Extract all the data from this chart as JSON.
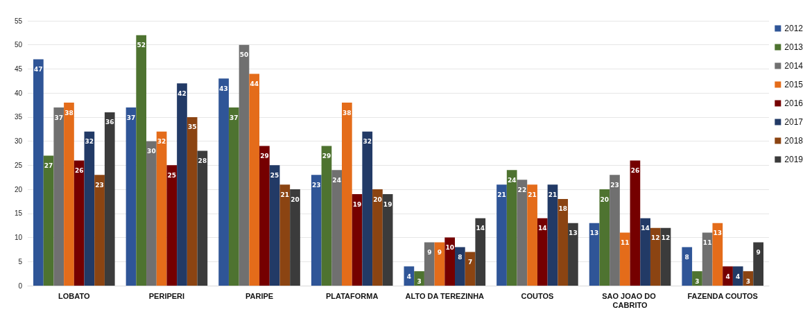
{
  "chart_data": {
    "type": "bar",
    "categories": [
      "LOBATO",
      "PERIPERI",
      "PARIPE",
      "PLATAFORMA",
      "ALTO DA TEREZINHA",
      "COUTOS",
      "SAO JOAO DO CABRITO",
      "FAZENDA COUTOS"
    ],
    "series": [
      {
        "name": "2012",
        "color": "#2f5597",
        "values": [
          47,
          37,
          43,
          23,
          4,
          21,
          13,
          8
        ]
      },
      {
        "name": "2013",
        "color": "#4e7330",
        "values": [
          27,
          52,
          37,
          29,
          3,
          24,
          20,
          3
        ]
      },
      {
        "name": "2014",
        "color": "#707070",
        "values": [
          37,
          30,
          50,
          24,
          9,
          22,
          23,
          11
        ]
      },
      {
        "name": "2015",
        "color": "#e46c1a",
        "values": [
          38,
          32,
          44,
          38,
          9,
          21,
          11,
          13
        ]
      },
      {
        "name": "2016",
        "color": "#750000",
        "values": [
          26,
          25,
          29,
          19,
          10,
          14,
          26,
          4
        ]
      },
      {
        "name": "2017",
        "color": "#223a66",
        "values": [
          32,
          42,
          25,
          32,
          8,
          21,
          14,
          4
        ]
      },
      {
        "name": "2018",
        "color": "#8b4412",
        "values": [
          23,
          35,
          21,
          20,
          7,
          18,
          12,
          3
        ]
      },
      {
        "name": "2019",
        "color": "#3b3b3b",
        "values": [
          36,
          28,
          20,
          19,
          14,
          13,
          12,
          9
        ]
      }
    ],
    "ylim": [
      0,
      55
    ],
    "yticks": [
      0,
      5,
      10,
      15,
      20,
      25,
      30,
      35,
      40,
      45,
      50,
      55
    ],
    "grid": "y",
    "legend": "right",
    "data_labels": true
  }
}
